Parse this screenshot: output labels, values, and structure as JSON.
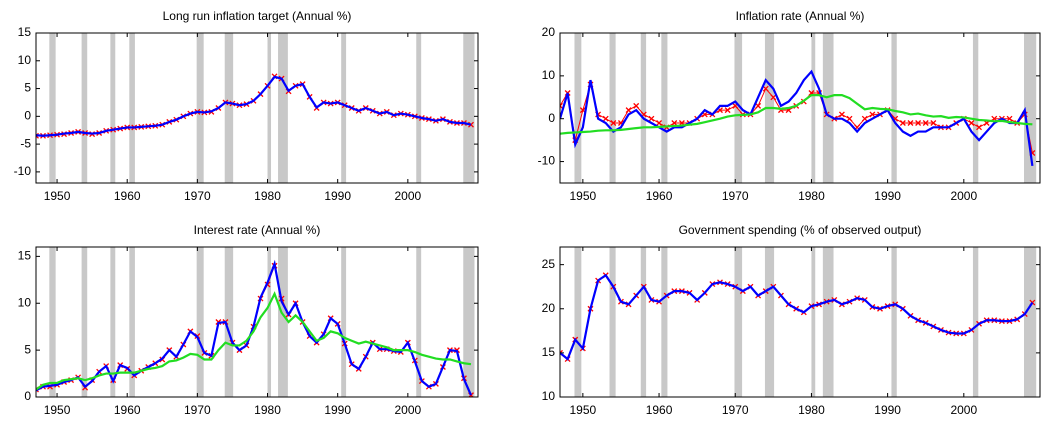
{
  "chart_data": [
    {
      "type": "line",
      "title": "Long run inflation target (Annual %)",
      "xlim": [
        1947,
        2010
      ],
      "xticks": [
        1950,
        1960,
        1970,
        1980,
        1990,
        2000
      ],
      "ylim": [
        -12,
        15
      ],
      "yticks": [
        -10,
        -5,
        0,
        5,
        10,
        15
      ],
      "grid": false,
      "shading": [
        [
          1948.9,
          1949.8
        ],
        [
          1953.5,
          1954.3
        ],
        [
          1957.6,
          1958.3
        ],
        [
          1960.3,
          1961.1
        ],
        [
          1969.9,
          1970.9
        ],
        [
          1973.9,
          1975.1
        ],
        [
          1980.0,
          1980.5
        ],
        [
          1981.5,
          1982.9
        ],
        [
          1990.5,
          1991.2
        ],
        [
          2001.2,
          2001.9
        ],
        [
          2007.9,
          2009.5
        ]
      ],
      "shading_color": "#c8c8c8",
      "x": [
        1947,
        1948,
        1949,
        1950,
        1951,
        1952,
        1953,
        1954,
        1955,
        1956,
        1957,
        1958,
        1959,
        1960,
        1961,
        1962,
        1963,
        1964,
        1965,
        1966,
        1967,
        1968,
        1969,
        1970,
        1971,
        1972,
        1973,
        1974,
        1975,
        1976,
        1977,
        1978,
        1979,
        1980,
        1981,
        1982,
        1983,
        1984,
        1985,
        1986,
        1987,
        1988,
        1989,
        1990,
        1991,
        1992,
        1993,
        1994,
        1995,
        1996,
        1997,
        1998,
        1999,
        2000,
        2001,
        2002,
        2003,
        2004,
        2005,
        2006,
        2007,
        2008,
        2009
      ],
      "series": [
        {
          "color": "#ff0000",
          "marker": "x",
          "values": [
            -3.5,
            -3.5,
            -3.4,
            -3.3,
            -3.2,
            -3.0,
            -2.8,
            -3.0,
            -3.2,
            -3.0,
            -2.6,
            -2.4,
            -2.2,
            -2.0,
            -2.0,
            -1.9,
            -1.8,
            -1.7,
            -1.5,
            -1.0,
            -0.6,
            0.0,
            0.5,
            0.8,
            0.7,
            0.8,
            1.5,
            2.5,
            2.3,
            2.0,
            2.2,
            2.8,
            4.0,
            5.5,
            7.2,
            6.8,
            4.5,
            5.5,
            5.8,
            3.5,
            1.5,
            2.5,
            2.3,
            2.5,
            2.0,
            1.5,
            1.0,
            1.5,
            1.0,
            0.5,
            0.8,
            0.2,
            0.5,
            0.3,
            0.0,
            -0.3,
            -0.5,
            -0.8,
            -0.5,
            -1.0,
            -1.2,
            -1.2,
            -1.5
          ]
        },
        {
          "color": "#0000ff",
          "values": [
            -3.4,
            -3.5,
            -3.4,
            -3.3,
            -3.1,
            -3.0,
            -2.8,
            -3.0,
            -3.1,
            -3.0,
            -2.6,
            -2.4,
            -2.2,
            -2.0,
            -2.0,
            -1.9,
            -1.8,
            -1.7,
            -1.5,
            -1.0,
            -0.6,
            0.0,
            0.5,
            0.8,
            0.7,
            0.9,
            1.5,
            2.5,
            2.3,
            2.0,
            2.2,
            2.8,
            4.0,
            5.5,
            7.1,
            6.8,
            4.6,
            5.5,
            5.8,
            3.5,
            1.6,
            2.5,
            2.3,
            2.5,
            2.0,
            1.5,
            1.0,
            1.5,
            1.0,
            0.5,
            0.8,
            0.2,
            0.5,
            0.3,
            0.0,
            -0.3,
            -0.5,
            -0.8,
            -0.5,
            -1.0,
            -1.2,
            -1.2,
            -1.5
          ]
        }
      ]
    },
    {
      "type": "line",
      "title": "Inflation rate (Annual %)",
      "xlim": [
        1947,
        2010
      ],
      "xticks": [
        1950,
        1960,
        1970,
        1980,
        1990,
        2000
      ],
      "ylim": [
        -15,
        20
      ],
      "yticks": [
        -10,
        0,
        10,
        20
      ],
      "grid": false,
      "shading": [
        [
          1948.9,
          1949.8
        ],
        [
          1953.5,
          1954.3
        ],
        [
          1957.6,
          1958.3
        ],
        [
          1960.3,
          1961.1
        ],
        [
          1969.9,
          1970.9
        ],
        [
          1973.9,
          1975.1
        ],
        [
          1980.0,
          1980.5
        ],
        [
          1981.5,
          1982.9
        ],
        [
          1990.5,
          1991.2
        ],
        [
          2001.2,
          2001.9
        ],
        [
          2007.9,
          2009.5
        ]
      ],
      "shading_color": "#c8c8c8",
      "x": [
        1947,
        1948,
        1949,
        1950,
        1951,
        1952,
        1953,
        1954,
        1955,
        1956,
        1957,
        1958,
        1959,
        1960,
        1961,
        1962,
        1963,
        1964,
        1965,
        1966,
        1967,
        1968,
        1969,
        1970,
        1971,
        1972,
        1973,
        1974,
        1975,
        1976,
        1977,
        1978,
        1979,
        1980,
        1981,
        1982,
        1983,
        1984,
        1985,
        1986,
        1987,
        1988,
        1989,
        1990,
        1991,
        1992,
        1993,
        1994,
        1995,
        1996,
        1997,
        1998,
        1999,
        2000,
        2001,
        2002,
        2003,
        2004,
        2005,
        2006,
        2007,
        2008,
        2009
      ],
      "series": [
        {
          "color": "#ff0000",
          "marker": "x",
          "values": [
            3,
            6,
            -5,
            2,
            8,
            1,
            0,
            -1,
            -1,
            2,
            3,
            1,
            0,
            -1,
            -2,
            -1,
            -1,
            -1,
            0,
            1,
            1,
            2,
            2,
            3,
            1,
            1,
            3,
            7,
            5,
            2,
            2,
            3,
            4,
            6,
            6,
            1,
            0,
            1,
            0,
            -2,
            0,
            1,
            1,
            2,
            0,
            -1,
            -1,
            -1,
            -1,
            -1,
            -2,
            -2,
            -1,
            0,
            -1,
            -2,
            -1,
            0,
            0,
            0,
            -1,
            1,
            -8
          ]
        },
        {
          "color": "#0000ff",
          "values": [
            0,
            6,
            -6,
            -2,
            9,
            0,
            -1,
            -3,
            -2,
            1,
            2,
            0,
            -1,
            -2,
            -3,
            -2,
            -2,
            -1,
            0,
            2,
            1,
            3,
            3,
            4,
            2,
            1,
            5,
            9,
            7,
            3,
            4,
            6,
            9,
            11,
            7,
            1,
            0,
            0,
            -1,
            -3,
            -1,
            0,
            1,
            2,
            -1,
            -3,
            -4,
            -3,
            -3,
            -2,
            -2,
            -2,
            -1,
            0,
            -3,
            -5,
            -3,
            -1,
            0,
            -1,
            -1,
            2,
            -11
          ]
        },
        {
          "color": "#22dd22",
          "values": [
            -3.5,
            -3.3,
            -3.2,
            -3.1,
            -3.0,
            -2.8,
            -2.7,
            -2.7,
            -2.6,
            -2.4,
            -2.2,
            -2.0,
            -2.0,
            -1.9,
            -1.8,
            -1.7,
            -1.6,
            -1.4,
            -1.2,
            -0.8,
            -0.4,
            0.0,
            0.5,
            0.8,
            0.9,
            1.0,
            1.5,
            2.5,
            2.5,
            2.3,
            2.5,
            3.0,
            4.2,
            5.5,
            5.5,
            5.0,
            5.5,
            5.5,
            4.8,
            3.5,
            2.2,
            2.5,
            2.3,
            2.2,
            1.8,
            1.5,
            1.0,
            1.2,
            0.8,
            0.5,
            0.6,
            0.2,
            0.4,
            0.3,
            0.0,
            -0.3,
            -0.4,
            -0.6,
            -0.5,
            -0.8,
            -1.0,
            -1.2,
            -1.3
          ]
        }
      ]
    },
    {
      "type": "line",
      "title": "Interest rate (Annual %)",
      "xlim": [
        1947,
        2010
      ],
      "xticks": [
        1950,
        1960,
        1970,
        1980,
        1990,
        2000
      ],
      "ylim": [
        0,
        16
      ],
      "yticks": [
        0,
        5,
        10,
        15
      ],
      "grid": false,
      "shading": [
        [
          1948.9,
          1949.8
        ],
        [
          1953.5,
          1954.3
        ],
        [
          1957.6,
          1958.3
        ],
        [
          1960.3,
          1961.1
        ],
        [
          1969.9,
          1970.9
        ],
        [
          1973.9,
          1975.1
        ],
        [
          1980.0,
          1980.5
        ],
        [
          1981.5,
          1982.9
        ],
        [
          1990.5,
          1991.2
        ],
        [
          2001.2,
          2001.9
        ],
        [
          2007.9,
          2009.5
        ]
      ],
      "shading_color": "#c8c8c8",
      "x": [
        1947,
        1948,
        1949,
        1950,
        1951,
        1952,
        1953,
        1954,
        1955,
        1956,
        1957,
        1958,
        1959,
        1960,
        1961,
        1962,
        1963,
        1964,
        1965,
        1966,
        1967,
        1968,
        1969,
        1970,
        1971,
        1972,
        1973,
        1974,
        1975,
        1976,
        1977,
        1978,
        1979,
        1980,
        1981,
        1982,
        1983,
        1984,
        1985,
        1986,
        1987,
        1988,
        1989,
        1990,
        1991,
        1992,
        1993,
        1994,
        1995,
        1996,
        1997,
        1998,
        1999,
        2000,
        2001,
        2002,
        2003,
        2004,
        2005,
        2006,
        2007,
        2008,
        2009
      ],
      "series": [
        {
          "color": "#ff0000",
          "marker": "x",
          "values": [
            0.8,
            1.1,
            1.1,
            1.3,
            1.6,
            1.8,
            2.1,
            1.0,
            1.8,
            2.7,
            3.3,
            1.8,
            3.4,
            3.0,
            2.3,
            2.8,
            3.2,
            3.6,
            4.0,
            5.0,
            4.3,
            5.6,
            7.0,
            6.5,
            4.7,
            4.4,
            8.0,
            8.0,
            5.8,
            5.0,
            5.5,
            7.5,
            10.5,
            12.0,
            14.0,
            10.5,
            8.8,
            10.0,
            8.0,
            6.5,
            5.8,
            6.7,
            8.4,
            7.8,
            5.7,
            3.5,
            3.0,
            4.3,
            5.8,
            5.1,
            5.1,
            4.9,
            4.8,
            5.8,
            3.9,
            1.7,
            1.1,
            1.4,
            3.2,
            5.0,
            5.0,
            2.0,
            0.2
          ]
        },
        {
          "color": "#0000ff",
          "values": [
            0.7,
            1.1,
            1.2,
            1.3,
            1.6,
            1.8,
            2.1,
            1.1,
            1.7,
            2.7,
            3.3,
            1.7,
            3.4,
            3.1,
            2.3,
            2.8,
            3.2,
            3.6,
            4.1,
            5.0,
            4.3,
            5.6,
            7.0,
            6.4,
            4.7,
            4.4,
            7.9,
            8.0,
            5.8,
            5.0,
            5.5,
            7.5,
            10.6,
            12.2,
            14.2,
            10.2,
            8.8,
            10.0,
            8.0,
            6.5,
            5.8,
            6.7,
            8.4,
            7.8,
            5.7,
            3.5,
            3.0,
            4.3,
            5.8,
            5.1,
            5.1,
            4.9,
            4.8,
            5.8,
            3.8,
            1.7,
            1.1,
            1.4,
            3.2,
            5.0,
            4.9,
            1.9,
            0.2
          ]
        },
        {
          "color": "#22dd22",
          "values": [
            0.8,
            1.3,
            1.5,
            1.5,
            1.8,
            1.9,
            2.0,
            1.8,
            2.0,
            2.3,
            2.5,
            2.5,
            2.6,
            2.6,
            2.6,
            2.8,
            3.0,
            3.1,
            3.3,
            3.8,
            3.9,
            4.2,
            4.6,
            4.5,
            4.0,
            4.0,
            5.0,
            5.8,
            5.5,
            5.5,
            6.0,
            7.0,
            8.5,
            9.5,
            11.0,
            9.0,
            8.0,
            8.7,
            8.0,
            7.0,
            6.0,
            6.3,
            7.0,
            6.8,
            6.3,
            6.0,
            5.7,
            5.9,
            5.7,
            5.5,
            5.3,
            5.0,
            5.0,
            5.0,
            4.8,
            4.5,
            4.3,
            4.1,
            4.0,
            4.0,
            3.8,
            3.6,
            3.5
          ]
        }
      ]
    },
    {
      "type": "line",
      "title": "Government spending (% of observed output)",
      "xlim": [
        1947,
        2010
      ],
      "xticks": [
        1950,
        1960,
        1970,
        1980,
        1990,
        2000
      ],
      "ylim": [
        10,
        27
      ],
      "yticks": [
        10,
        15,
        20,
        25
      ],
      "grid": false,
      "shading": [
        [
          1948.9,
          1949.8
        ],
        [
          1953.5,
          1954.3
        ],
        [
          1957.6,
          1958.3
        ],
        [
          1960.3,
          1961.1
        ],
        [
          1969.9,
          1970.9
        ],
        [
          1973.9,
          1975.1
        ],
        [
          1980.0,
          1980.5
        ],
        [
          1981.5,
          1982.9
        ],
        [
          1990.5,
          1991.2
        ],
        [
          2001.2,
          2001.9
        ],
        [
          2007.9,
          2009.5
        ]
      ],
      "shading_color": "#c8c8c8",
      "x": [
        1947,
        1948,
        1949,
        1950,
        1951,
        1952,
        1953,
        1954,
        1955,
        1956,
        1957,
        1958,
        1959,
        1960,
        1961,
        1962,
        1963,
        1964,
        1965,
        1966,
        1967,
        1968,
        1969,
        1970,
        1971,
        1972,
        1973,
        1974,
        1975,
        1976,
        1977,
        1978,
        1979,
        1980,
        1981,
        1982,
        1983,
        1984,
        1985,
        1986,
        1987,
        1988,
        1989,
        1990,
        1991,
        1992,
        1993,
        1994,
        1995,
        1996,
        1997,
        1998,
        1999,
        2000,
        2001,
        2002,
        2003,
        2004,
        2005,
        2006,
        2007,
        2008,
        2009
      ],
      "series": [
        {
          "color": "#ff0000",
          "marker": "x",
          "values": [
            15.0,
            14.3,
            16.5,
            15.5,
            20.0,
            23.2,
            23.8,
            22.5,
            20.8,
            20.5,
            21.5,
            22.5,
            21.0,
            20.8,
            21.5,
            22.0,
            22.0,
            21.8,
            21.0,
            21.8,
            22.8,
            23.0,
            22.8,
            22.5,
            22.0,
            22.5,
            21.5,
            22.0,
            22.5,
            21.5,
            20.5,
            20.0,
            19.6,
            20.3,
            20.5,
            20.8,
            21.0,
            20.5,
            20.8,
            21.2,
            21.0,
            20.2,
            20.0,
            20.3,
            20.5,
            20.0,
            19.2,
            18.7,
            18.4,
            18.0,
            17.6,
            17.3,
            17.2,
            17.2,
            17.6,
            18.3,
            18.7,
            18.7,
            18.6,
            18.6,
            18.8,
            19.4,
            20.7
          ]
        },
        {
          "color": "#0000ff",
          "values": [
            15.0,
            14.3,
            16.5,
            15.5,
            20.0,
            23.2,
            23.8,
            22.5,
            20.8,
            20.5,
            21.5,
            22.5,
            21.0,
            20.8,
            21.5,
            22.0,
            22.0,
            21.8,
            21.0,
            21.8,
            22.8,
            23.0,
            22.8,
            22.5,
            22.0,
            22.5,
            21.5,
            22.0,
            22.5,
            21.5,
            20.5,
            20.0,
            19.6,
            20.3,
            20.5,
            20.8,
            21.0,
            20.5,
            20.8,
            21.2,
            21.0,
            20.2,
            20.0,
            20.3,
            20.5,
            20.0,
            19.2,
            18.7,
            18.4,
            18.0,
            17.6,
            17.3,
            17.2,
            17.2,
            17.6,
            18.3,
            18.7,
            18.7,
            18.6,
            18.6,
            18.8,
            19.4,
            20.7
          ]
        }
      ]
    }
  ]
}
